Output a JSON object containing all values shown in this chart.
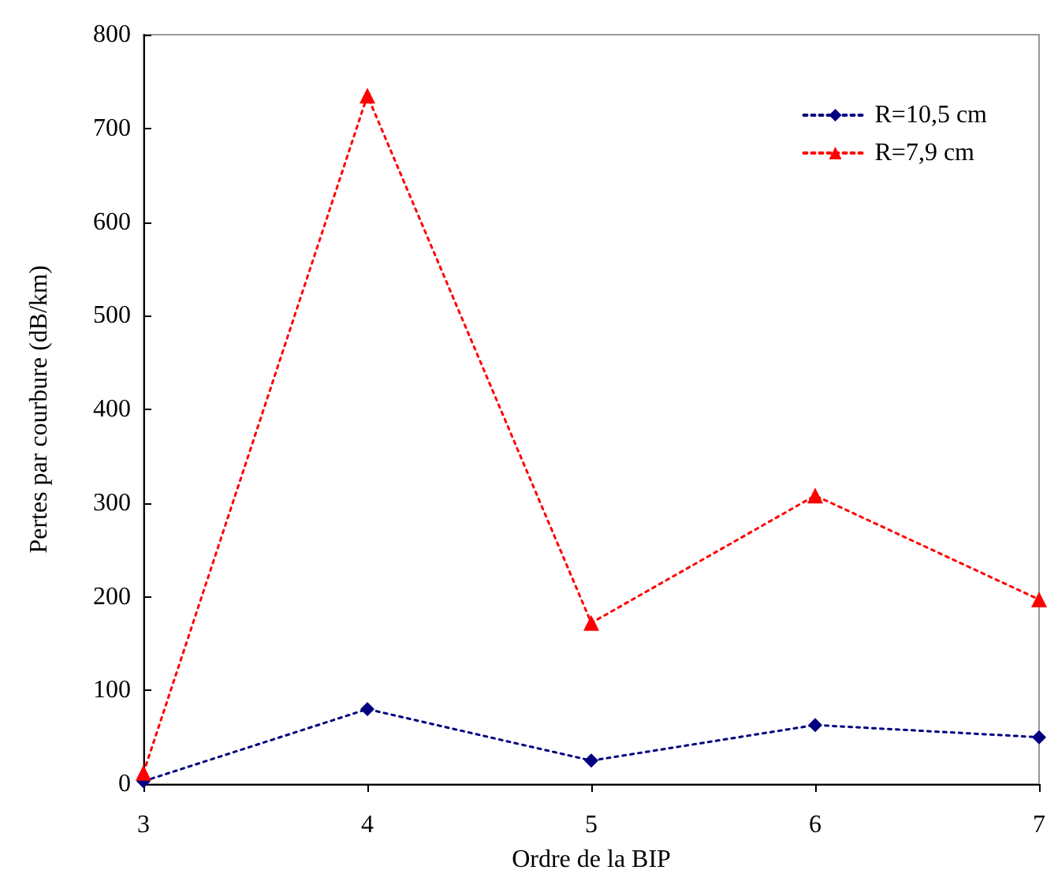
{
  "chart_data": {
    "type": "line",
    "xlabel": "Ordre de la BIP",
    "ylabel": "Pertes par courbure (dB/km)",
    "x": [
      3,
      4,
      5,
      6,
      7
    ],
    "series": [
      {
        "name": "R=10,5 cm",
        "color": "#000080",
        "marker": "diamond",
        "values": [
          3,
          80,
          25,
          63,
          50
        ]
      },
      {
        "name": "R=7,9 cm",
        "color": "#ff0000",
        "marker": "triangle",
        "values": [
          12,
          735,
          172,
          308,
          197
        ]
      }
    ],
    "xlim": [
      3,
      7
    ],
    "xticks": [
      3,
      4,
      5,
      6,
      7
    ],
    "ylim": [
      0,
      800
    ],
    "yticks": [
      0,
      100,
      200,
      300,
      400,
      500,
      600,
      700,
      800
    ],
    "grid": false,
    "legend": "top right",
    "line_style": "dotted"
  }
}
